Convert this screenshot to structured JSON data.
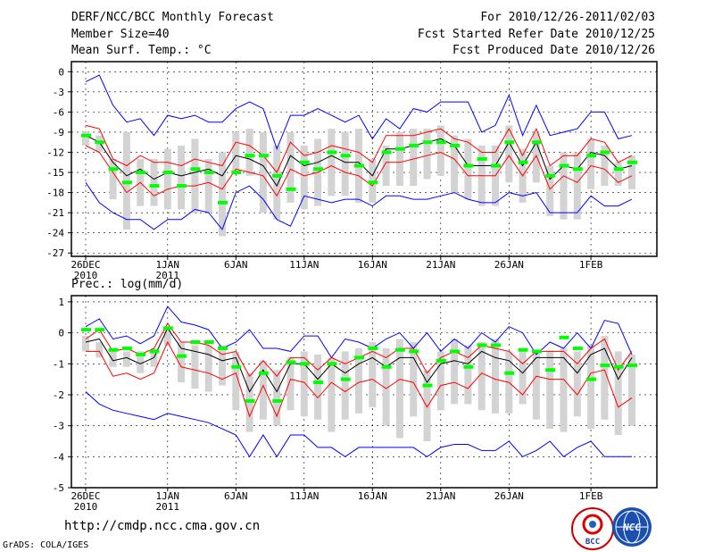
{
  "header": {
    "title": "DERF/NCC/BCC Monthly Forecast",
    "member": "Member Size=40",
    "variable": "Mean Surf. Temp.: °C",
    "period": "For 2010/12/26-2011/02/03",
    "started": "Fcst Started Refer Date 2010/12/25",
    "produced": "Fcst Produced Date 2010/12/26"
  },
  "footer": {
    "url": "http://cmdp.ncc.cma.gov.cn",
    "grads": "GrADS: COLA/IGES",
    "logo1_text": "BCC",
    "logo2_text": "NCC"
  },
  "colors": {
    "max_min": "#0000ff",
    "spread": "#ff0000",
    "mean": "#000000",
    "median": "#00ff00",
    "box": "#d3d3d3"
  },
  "chart_data": [
    {
      "type": "line",
      "title": "Mean Surf. Temp.: °C",
      "ylim": [
        -27.5,
        1.5
      ],
      "yticks": [
        0,
        -3,
        -6,
        -9,
        -12,
        -15,
        -18,
        -21,
        -24,
        -27
      ],
      "x_tick_labels": [
        {
          "day": 0,
          "label": "26DEC",
          "sub": "2010"
        },
        {
          "day": 6,
          "label": "1JAN",
          "sub": "2011"
        },
        {
          "day": 11,
          "label": "6JAN",
          "sub": ""
        },
        {
          "day": 16,
          "label": "11JAN",
          "sub": ""
        },
        {
          "day": 21,
          "label": "16JAN",
          "sub": ""
        },
        {
          "day": 26,
          "label": "21JAN",
          "sub": ""
        },
        {
          "day": 31,
          "label": "26JAN",
          "sub": ""
        },
        {
          "day": 37,
          "label": "1FEB",
          "sub": ""
        }
      ],
      "max": [
        -1.5,
        -0.5,
        -5,
        -7.5,
        -7,
        -9.5,
        -6.5,
        -7,
        -6.5,
        -7.5,
        -7.5,
        -5.5,
        -4.5,
        -5.5,
        -11.5,
        -6.5,
        -6.5,
        -5.5,
        -6.5,
        -7.5,
        -6.5,
        -10,
        -7,
        -8.5,
        -5.5,
        -6,
        -4.5,
        -4.5,
        -4.5,
        -9,
        -8,
        -3.5,
        -9.5,
        -5,
        -9.5,
        -9,
        -8.5,
        -6,
        -6,
        -10,
        -9.5
      ],
      "upper": [
        -8,
        -8.5,
        -13,
        -14,
        -12.5,
        -13.5,
        -13.5,
        -14,
        -13,
        -13.5,
        -14,
        -10.5,
        -11,
        -12.5,
        -15,
        -10.5,
        -12.5,
        -12,
        -11,
        -11.5,
        -12,
        -13.5,
        -9.5,
        -9.5,
        -9.5,
        -9,
        -8.5,
        -10,
        -10.5,
        -12,
        -12,
        -8.5,
        -12.5,
        -8.5,
        -14,
        -12.5,
        -12.5,
        -10,
        -10.5,
        -13.5,
        -12.5
      ],
      "mean": [
        -9.5,
        -10.5,
        -13.5,
        -15.5,
        -14.5,
        -16,
        -15,
        -15.5,
        -15,
        -14.5,
        -15.5,
        -12.5,
        -13,
        -14,
        -17,
        -12.5,
        -14,
        -13.5,
        -12.5,
        -13.5,
        -13.5,
        -15.5,
        -11.5,
        -11.5,
        -11,
        -10.5,
        -10,
        -11,
        -14,
        -14,
        -14,
        -10.5,
        -14,
        -10.5,
        -16,
        -14,
        -14.5,
        -12,
        -12.5,
        -14.5,
        -14
      ],
      "lower": [
        -11,
        -12,
        -15,
        -18,
        -16.5,
        -18.5,
        -17.5,
        -17,
        -17,
        -16.5,
        -17.5,
        -14.5,
        -15,
        -15.5,
        -18.5,
        -14.5,
        -15.5,
        -15,
        -14,
        -15,
        -15.5,
        -17,
        -13.5,
        -13.5,
        -13,
        -12.5,
        -12,
        -13,
        -15.5,
        -15.5,
        -15.5,
        -12.5,
        -15.5,
        -12.5,
        -17.5,
        -15.5,
        -16.5,
        -14,
        -14.5,
        -16.5,
        -15.5
      ],
      "min": [
        -16.5,
        -19.5,
        -21,
        -22,
        -22,
        -23.5,
        -22,
        -22,
        -20.5,
        -21,
        -23.5,
        -18,
        -17,
        -19,
        -22,
        -23,
        -18.5,
        -19,
        -19.5,
        -19,
        -19,
        -20,
        -18.5,
        -18.5,
        -19,
        -19,
        -18.5,
        -18,
        -19,
        -19.5,
        -19.5,
        -18,
        -18.5,
        -18,
        -21,
        -21,
        -21,
        -18.5,
        -20,
        -20,
        -19
      ],
      "box_top": [
        -9,
        -9.5,
        -13,
        -9,
        -13,
        -13,
        -11.5,
        -11,
        -10,
        -13,
        -12,
        -9,
        -8.5,
        -9,
        -11,
        -9,
        -11,
        -10,
        -8.5,
        -9,
        -8.5,
        -13,
        -11,
        -9,
        -8.5,
        -8.5,
        -8,
        -9.5,
        -10,
        -11,
        -11,
        -8,
        -11.5,
        -9,
        -14,
        -12,
        -12,
        -10,
        -11,
        -13.5,
        -12.5
      ],
      "box_bot": [
        -11,
        -12,
        -19,
        -23.5,
        -20,
        -20,
        -20.5,
        -20.5,
        -21,
        -21,
        -24.5,
        -15,
        -15.5,
        -21,
        -22,
        -19.5,
        -20.5,
        -20,
        -18.5,
        -18.5,
        -19.5,
        -19.5,
        -17,
        -17,
        -17,
        -16,
        -15.5,
        -18,
        -19,
        -20,
        -20,
        -16.5,
        -19.5,
        -16.5,
        -21.5,
        -22,
        -22,
        -17.5,
        -17,
        -17,
        -17.5
      ],
      "median": [
        -9.5,
        -10.5,
        -14.5,
        -16.5,
        -15,
        -17,
        -15,
        -17,
        -14.5,
        -15,
        -19.5,
        -15,
        -12.5,
        -12.5,
        -15.5,
        -17.5,
        -13.5,
        -14.5,
        -12,
        -12.5,
        -14,
        -16.5,
        -12,
        -11.5,
        -11,
        -10.5,
        -10.5,
        -11,
        -14,
        -13,
        -14,
        -10.5,
        -13.5,
        -10.5,
        -15.5,
        -14,
        -14.5,
        -12.5,
        -12,
        -14.5,
        -13.5
      ]
    },
    {
      "type": "line",
      "title": "Prec.: log(mm/d)",
      "ylim": [
        -5,
        1.2
      ],
      "yticks": [
        1,
        0,
        -1,
        -2,
        -3,
        -4,
        -5
      ],
      "x_tick_labels": [
        {
          "day": 0,
          "label": "26DEC",
          "sub": "2010"
        },
        {
          "day": 6,
          "label": "1JAN",
          "sub": "2011"
        },
        {
          "day": 11,
          "label": "6JAN",
          "sub": ""
        },
        {
          "day": 16,
          "label": "11JAN",
          "sub": ""
        },
        {
          "day": 21,
          "label": "16JAN",
          "sub": ""
        },
        {
          "day": 26,
          "label": "21JAN",
          "sub": ""
        },
        {
          "day": 31,
          "label": "26JAN",
          "sub": ""
        },
        {
          "day": 37,
          "label": "1FEB",
          "sub": ""
        }
      ],
      "max": [
        0.2,
        0.45,
        -0.2,
        -0.1,
        -0.35,
        -0.1,
        0.85,
        0.35,
        0.25,
        0.1,
        -0.5,
        -0.3,
        0.1,
        -0.5,
        -0.5,
        -0.6,
        -0.1,
        -0.1,
        -0.8,
        -0.2,
        -0.3,
        -0.5,
        -0.2,
        0,
        -0.5,
        0,
        -0.6,
        -0.2,
        -0.5,
        0,
        -0.3,
        0.2,
        0,
        -0.7,
        -0.3,
        -0.5,
        0,
        -0.5,
        0.4,
        0.3,
        -0.7
      ],
      "upper": [
        -0.2,
        0.1,
        -0.6,
        -0.5,
        -0.7,
        -0.5,
        0.3,
        -0.3,
        -0.3,
        -0.4,
        -0.7,
        -0.6,
        -1.4,
        -0.9,
        -1.4,
        -0.8,
        -0.8,
        -1.2,
        -0.8,
        -1,
        -0.8,
        -0.6,
        -0.8,
        -0.5,
        -0.5,
        -1.3,
        -0.8,
        -0.6,
        -0.8,
        -0.4,
        -0.5,
        -0.6,
        -1,
        -0.6,
        -0.6,
        -0.6,
        -1,
        -0.5,
        -0.2,
        -1.2,
        -0.6
      ],
      "mean": [
        -0.3,
        -0.2,
        -0.9,
        -0.8,
        -1,
        -0.8,
        0.15,
        -0.5,
        -0.6,
        -0.7,
        -0.9,
        -0.8,
        -1.9,
        -1.2,
        -1.9,
        -1,
        -1,
        -1.5,
        -1,
        -1.3,
        -1,
        -0.8,
        -1.1,
        -0.8,
        -0.8,
        -1.6,
        -1,
        -0.9,
        -1,
        -0.6,
        -0.8,
        -0.9,
        -1.3,
        -0.8,
        -0.8,
        -0.8,
        -1.3,
        -0.7,
        -0.5,
        -1.5,
        -0.8
      ],
      "lower": [
        -0.6,
        -0.6,
        -1.4,
        -1.3,
        -1.5,
        -1.3,
        -0.3,
        -1.1,
        -1.2,
        -1.3,
        -1.5,
        -1.3,
        -2.7,
        -1.7,
        -2.7,
        -1.5,
        -1.6,
        -2.1,
        -1.6,
        -1.9,
        -1.6,
        -1.5,
        -1.8,
        -1.5,
        -1.6,
        -2.4,
        -1.7,
        -1.6,
        -1.8,
        -1.3,
        -1.5,
        -1.6,
        -2,
        -1.4,
        -1.5,
        -1.5,
        -2,
        -1.3,
        -1.2,
        -2.4,
        -2.1
      ],
      "min": [
        -1.9,
        -2.3,
        -2.5,
        -2.6,
        -2.7,
        -2.8,
        -2.6,
        -2.7,
        -2.8,
        -2.9,
        -3.1,
        -3.3,
        -4,
        -3.3,
        -4,
        -3.3,
        -3.3,
        -3.7,
        -3.7,
        -4,
        -3.7,
        -3.7,
        -3.7,
        -3.7,
        -3.7,
        -4,
        -3.7,
        -3.6,
        -3.6,
        -3.8,
        -3.8,
        -3.5,
        -4,
        -3.8,
        -3.5,
        -4,
        -3.7,
        -3.5,
        -4,
        -4,
        -4
      ],
      "box_top": [
        -0.1,
        -0.3,
        -0.5,
        -0.6,
        -0.6,
        -0.5,
        0.1,
        -0.3,
        -0.4,
        -0.4,
        -0.4,
        -0.6,
        -1.3,
        -0.9,
        -1.2,
        -0.8,
        -0.6,
        -0.7,
        -0.8,
        -0.6,
        -0.5,
        -0.3,
        -0.5,
        -0.2,
        -0.3,
        -1.2,
        -0.6,
        -0.2,
        -0.4,
        -0.3,
        -0.2,
        -0.6,
        -0.6,
        -0.6,
        -0.6,
        -0.5,
        -0.6,
        -0.4,
        -0.1,
        -0.6,
        -0.7
      ],
      "box_bot": [
        -0.6,
        -0.8,
        -1.1,
        -1.1,
        -1.3,
        -1.1,
        -0.4,
        -1.6,
        -1.8,
        -1.9,
        -1.7,
        -2.5,
        -3.2,
        -2.8,
        -3,
        -2.5,
        -2.7,
        -2.8,
        -3.2,
        -2.8,
        -2.6,
        -2.4,
        -3,
        -3.4,
        -2.7,
        -3.5,
        -2.5,
        -2.3,
        -2.3,
        -2.5,
        -2.6,
        -2.6,
        -2.3,
        -2.8,
        -3.1,
        -3.2,
        -2.7,
        -3.1,
        -2.8,
        -3.3,
        -3
      ],
      "median": [
        0.1,
        0.1,
        -0.55,
        -0.5,
        -0.7,
        -0.6,
        0.15,
        -0.75,
        -0.3,
        -0.3,
        -0.5,
        -1.1,
        -2.2,
        -1.3,
        -2.2,
        -0.95,
        -1,
        -1.6,
        -1,
        -1.5,
        -0.8,
        -0.5,
        -1.1,
        -0.55,
        -0.6,
        -1.7,
        -0.9,
        -0.6,
        -1.1,
        -0.4,
        -0.4,
        -1.3,
        -0.55,
        -0.6,
        -1.2,
        -0.15,
        -0.5,
        -1.5,
        -1.05,
        -1.1,
        -1.05
      ]
    }
  ]
}
